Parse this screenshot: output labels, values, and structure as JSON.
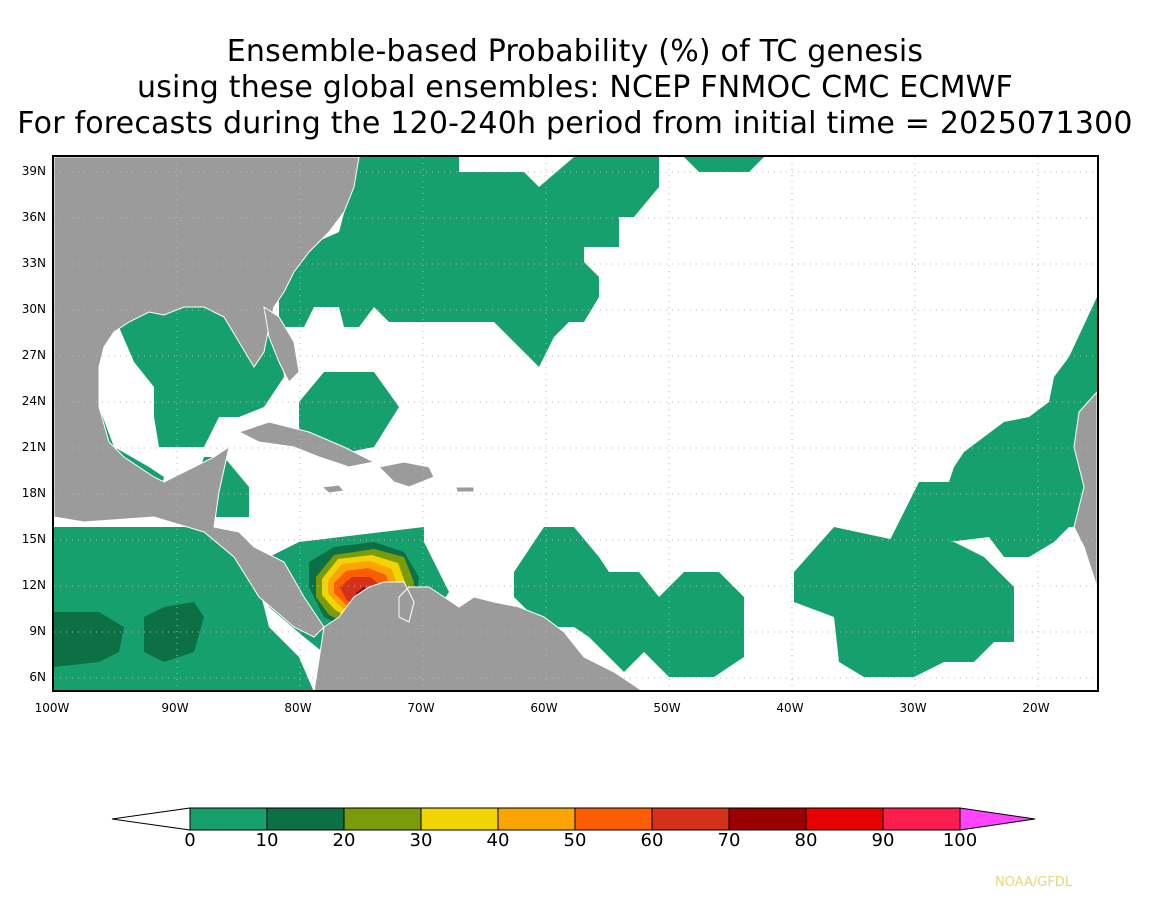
{
  "title": {
    "line1": "Ensemble-based Probability (%) of TC genesis",
    "line2": "using these global ensembles:   NCEP FNMOC CMC ECMWF",
    "line3": "For forecasts during the 120-240h period from initial time = 2025071300"
  },
  "axes": {
    "lat_labels": [
      "39N",
      "36N",
      "33N",
      "30N",
      "27N",
      "24N",
      "21N",
      "18N",
      "15N",
      "12N",
      "9N",
      "6N"
    ],
    "lon_labels": [
      "100W",
      "90W",
      "80W",
      "70W",
      "60W",
      "50W",
      "40W",
      "30W",
      "20W"
    ]
  },
  "legend": {
    "labels": [
      "0",
      "10",
      "20",
      "30",
      "40",
      "50",
      "60",
      "70",
      "80",
      "90",
      "100"
    ],
    "colors": [
      "#ffffff",
      "#16a06e",
      "#0d7044",
      "#7a9c0c",
      "#f2d404",
      "#f9a400",
      "#fb5d00",
      "#d4301a",
      "#9a0000",
      "#e60000",
      "#fc1e4e",
      "#ff44ff"
    ]
  },
  "colors": {
    "land": "#9b9b9b",
    "prob_0_10": "#16a06e",
    "prob_10_20": "#0d7044",
    "prob_20_30": "#7a9c0c",
    "prob_30_40": "#f2d404",
    "prob_40_50": "#f9a400",
    "prob_50_60": "#fb5d00",
    "prob_60_70": "#d4301a",
    "prob_70_80": "#9a0000"
  },
  "credit": "NOAA/GFDL"
}
